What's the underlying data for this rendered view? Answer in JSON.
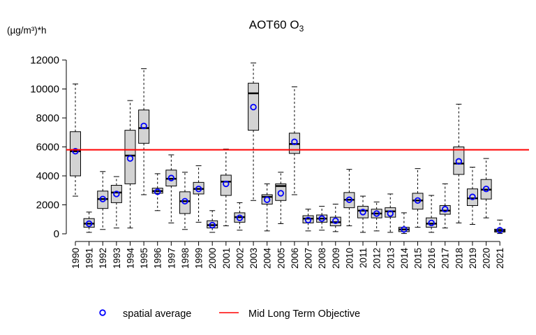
{
  "chart_data": {
    "type": "boxplot",
    "title": "AOT60 O",
    "title_subscript": "3",
    "ylabel": "(µg/m³)*h",
    "ylim": [
      0,
      12000
    ],
    "y_ticks": [
      0,
      2000,
      4000,
      6000,
      8000,
      10000,
      12000
    ],
    "y_tick_labels": [
      "0",
      "2000",
      "4000",
      "6000",
      "8000",
      "10000",
      "12000"
    ],
    "box_fill": "#d3d3d3",
    "mean_color": "#0000ff",
    "objective_color": "#ff0000",
    "objective": {
      "name": "Mid Long Term Objective",
      "value": 5800
    },
    "legend": [
      {
        "label": "spatial average",
        "marker": "circle",
        "color": "#0000ff"
      },
      {
        "label": "Mid Long Term Objective",
        "marker": "line",
        "color": "#ff0000"
      }
    ],
    "categories": [
      "1990",
      "1991",
      "1992",
      "1993",
      "1994",
      "1995",
      "1996",
      "1997",
      "1998",
      "1999",
      "2000",
      "2001",
      "2002",
      "2003",
      "2004",
      "2005",
      "2006",
      "2007",
      "2008",
      "2009",
      "2010",
      "2011",
      "2012",
      "2013",
      "2014",
      "2015",
      "2016",
      "2017",
      "2018",
      "2019",
      "2020",
      "2021"
    ],
    "boxes": [
      {
        "min": 2600,
        "q1": 4000,
        "median": 5700,
        "q3": 7050,
        "max": 10350,
        "mean": 5700
      },
      {
        "min": 100,
        "q1": 450,
        "median": 700,
        "q3": 1050,
        "max": 1500,
        "mean": 700
      },
      {
        "min": 300,
        "q1": 1750,
        "median": 2400,
        "q3": 2950,
        "max": 4300,
        "mean": 2400
      },
      {
        "min": 400,
        "q1": 2150,
        "median": 2850,
        "q3": 3350,
        "max": 3950,
        "mean": 2750
      },
      {
        "min": 400,
        "q1": 3450,
        "median": 5400,
        "q3": 7150,
        "max": 9200,
        "mean": 5200
      },
      {
        "min": 2700,
        "q1": 6250,
        "median": 7300,
        "q3": 8550,
        "max": 11400,
        "mean": 7450
      },
      {
        "min": 1600,
        "q1": 2800,
        "median": 2950,
        "q3": 3150,
        "max": 4150,
        "mean": 2900
      },
      {
        "min": 750,
        "q1": 3300,
        "median": 3800,
        "q3": 4400,
        "max": 5450,
        "mean": 3850
      },
      {
        "min": 300,
        "q1": 1400,
        "median": 2250,
        "q3": 2900,
        "max": 4250,
        "mean": 2250
      },
      {
        "min": 800,
        "q1": 2750,
        "median": 3100,
        "q3": 3550,
        "max": 4700,
        "mean": 3100
      },
      {
        "min": 100,
        "q1": 400,
        "median": 600,
        "q3": 900,
        "max": 1600,
        "mean": 600
      },
      {
        "min": 550,
        "q1": 2650,
        "median": 3600,
        "q3": 4050,
        "max": 5850,
        "mean": 3450
      },
      {
        "min": 250,
        "q1": 800,
        "median": 1150,
        "q3": 1450,
        "max": 2150,
        "mean": 1100
      },
      {
        "min": 2300,
        "q1": 7150,
        "median": 9700,
        "q3": 10400,
        "max": 11800,
        "mean": 8750
      },
      {
        "min": 200,
        "q1": 2050,
        "median": 2550,
        "q3": 2700,
        "max": 3450,
        "mean": 2350
      },
      {
        "min": 700,
        "q1": 2300,
        "median": 3300,
        "q3": 3450,
        "max": 4250,
        "mean": 2800
      },
      {
        "min": 2700,
        "q1": 5550,
        "median": 6200,
        "q3": 6950,
        "max": 10150,
        "mean": 6350
      },
      {
        "min": 200,
        "q1": 750,
        "median": 1050,
        "q3": 1250,
        "max": 1700,
        "mean": 950
      },
      {
        "min": 250,
        "q1": 800,
        "median": 1050,
        "q3": 1300,
        "max": 1900,
        "mean": 1050
      },
      {
        "min": 150,
        "q1": 550,
        "median": 800,
        "q3": 1150,
        "max": 2050,
        "mean": 900
      },
      {
        "min": 550,
        "q1": 1800,
        "median": 2350,
        "q3": 2850,
        "max": 4450,
        "mean": 2350
      },
      {
        "min": 100,
        "q1": 1100,
        "median": 1600,
        "q3": 1900,
        "max": 2600,
        "mean": 1500
      },
      {
        "min": 200,
        "q1": 1100,
        "median": 1400,
        "q3": 1700,
        "max": 2200,
        "mean": 1400
      },
      {
        "min": 100,
        "q1": 1150,
        "median": 1550,
        "q3": 1800,
        "max": 2750,
        "mean": 1400
      },
      {
        "min": 20,
        "q1": 150,
        "median": 300,
        "q3": 450,
        "max": 1450,
        "mean": 300
      },
      {
        "min": 450,
        "q1": 1700,
        "median": 2300,
        "q3": 2800,
        "max": 4500,
        "mean": 2300
      },
      {
        "min": 100,
        "q1": 450,
        "median": 700,
        "q3": 1100,
        "max": 2650,
        "mean": 750
      },
      {
        "min": 400,
        "q1": 1350,
        "median": 1600,
        "q3": 1950,
        "max": 3450,
        "mean": 1700
      },
      {
        "min": 750,
        "q1": 4100,
        "median": 4850,
        "q3": 6000,
        "max": 8950,
        "mean": 5000
      },
      {
        "min": 650,
        "q1": 1950,
        "median": 2450,
        "q3": 3100,
        "max": 4600,
        "mean": 2550
      },
      {
        "min": 1100,
        "q1": 2400,
        "median": 3050,
        "q3": 3750,
        "max": 5200,
        "mean": 3100
      },
      {
        "min": 20,
        "q1": 120,
        "median": 220,
        "q3": 320,
        "max": 950,
        "mean": 250
      }
    ]
  }
}
